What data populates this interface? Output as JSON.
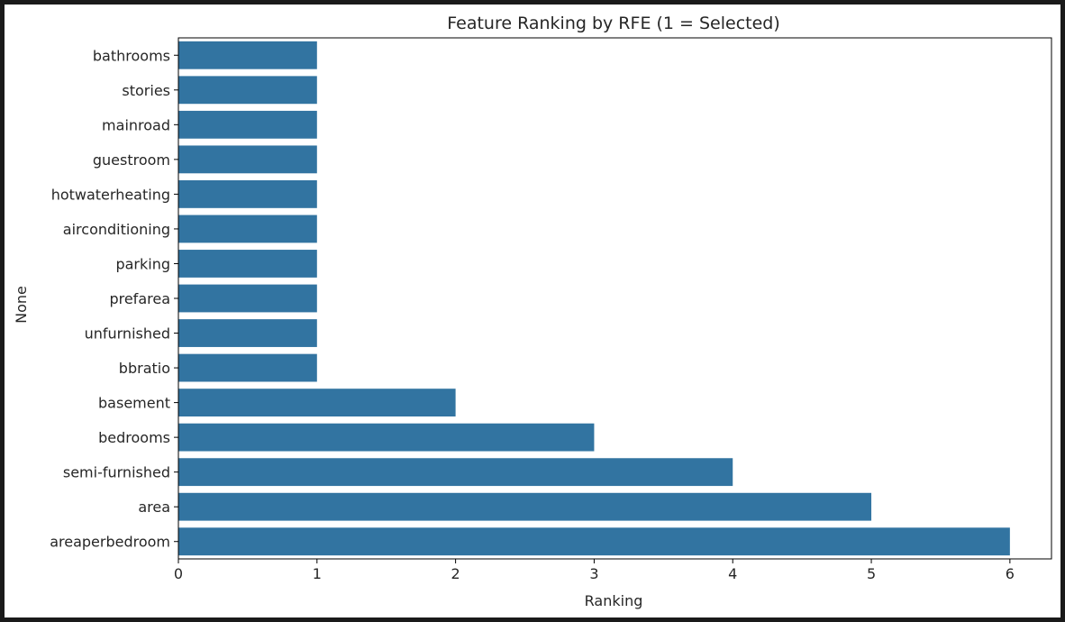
{
  "chart_data": {
    "type": "bar",
    "orientation": "horizontal",
    "title": "Feature Ranking by RFE (1 = Selected)",
    "xlabel": "Ranking",
    "ylabel": "None",
    "categories": [
      "bathrooms",
      "stories",
      "mainroad",
      "guestroom",
      "hotwaterheating",
      "airconditioning",
      "parking",
      "prefarea",
      "unfurnished",
      "bbratio",
      "basement",
      "bedrooms",
      "semi-furnished",
      "area",
      "areaperbedroom"
    ],
    "values": [
      1,
      1,
      1,
      1,
      1,
      1,
      1,
      1,
      1,
      1,
      2,
      3,
      4,
      5,
      6
    ],
    "xlim": [
      0,
      6.3
    ],
    "xticks": [
      "0",
      "1",
      "2",
      "3",
      "4",
      "5",
      "6"
    ],
    "bar_color": "#3274a1",
    "grid": false,
    "legend": "none"
  }
}
